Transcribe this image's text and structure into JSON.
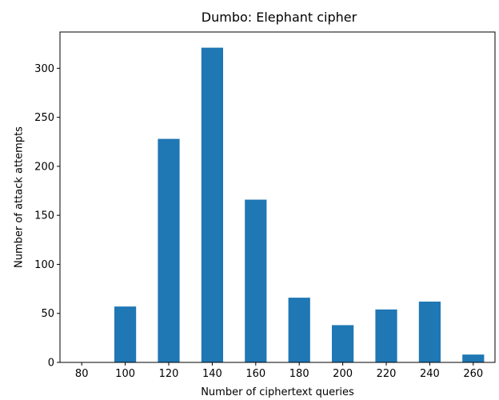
{
  "chart_data": {
    "type": "bar",
    "title": "Dumbo: Elephant cipher",
    "xlabel": "Number of ciphertext queries",
    "ylabel": "Number of attack attempts",
    "bar_color": "#1f77b4",
    "bar_width": 10,
    "xlim": [
      70,
      270
    ],
    "ylim": [
      0,
      337
    ],
    "xticks": [
      80,
      100,
      120,
      140,
      160,
      180,
      200,
      220,
      240,
      260
    ],
    "yticks": [
      0,
      50,
      100,
      150,
      200,
      250,
      300
    ],
    "grid": false,
    "x": [
      80,
      100,
      120,
      140,
      160,
      180,
      200,
      220,
      240,
      260
    ],
    "values": [
      0,
      57,
      228,
      321,
      166,
      66,
      38,
      54,
      62,
      8
    ]
  }
}
